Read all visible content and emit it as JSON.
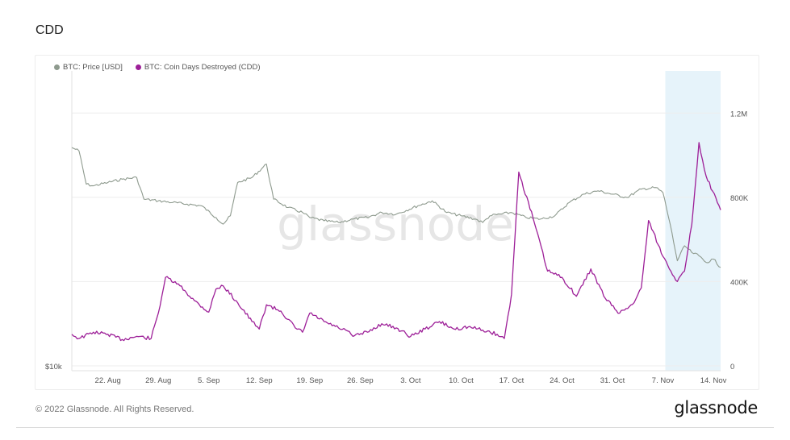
{
  "page": {
    "title": "CDD",
    "copyright": "© 2022 Glassnode. All Rights Reserved.",
    "brand": "glassnode",
    "watermark": "glassnode"
  },
  "colors": {
    "price": "#8e9a8e",
    "cdd": "#9d1f98",
    "highlight": "#e6f3fa",
    "grid": "#eeeeee"
  },
  "chart_data": {
    "type": "line",
    "title": "CDD",
    "x_ticks": [
      "22. Aug",
      "29. Aug",
      "5. Sep",
      "12. Sep",
      "19. Sep",
      "26. Sep",
      "3. Oct",
      "10. Oct",
      "17. Oct",
      "24. Oct",
      "31. Oct",
      "7. Nov",
      "14. Nov"
    ],
    "y_right_ticks": [
      "0",
      "400K",
      "800K",
      "1.2M"
    ],
    "y_right_range": [
      0,
      1400000
    ],
    "y_left_label": "$10k",
    "x_start": "2022-08-17",
    "x_end": "2022-11-15",
    "highlight_start": "2022-11-08",
    "grid": true,
    "legend_position": "top-left",
    "series": [
      {
        "name": "BTC: Price [USD]",
        "axis": "left",
        "points": [
          [
            "2022-08-17",
            23400
          ],
          [
            "2022-08-18",
            23200
          ],
          [
            "2022-08-19",
            21200
          ],
          [
            "2022-08-20",
            21100
          ],
          [
            "2022-08-22",
            21300
          ],
          [
            "2022-08-24",
            21500
          ],
          [
            "2022-08-26",
            21600
          ],
          [
            "2022-08-27",
            20300
          ],
          [
            "2022-08-29",
            20200
          ],
          [
            "2022-08-31",
            20100
          ],
          [
            "2022-09-02",
            20000
          ],
          [
            "2022-09-04",
            19900
          ],
          [
            "2022-09-06",
            19200
          ],
          [
            "2022-09-07",
            18800
          ],
          [
            "2022-09-08",
            19300
          ],
          [
            "2022-09-09",
            21300
          ],
          [
            "2022-09-11",
            21600
          ],
          [
            "2022-09-13",
            22400
          ],
          [
            "2022-09-14",
            20300
          ],
          [
            "2022-09-16",
            19800
          ],
          [
            "2022-09-18",
            19500
          ],
          [
            "2022-09-19",
            19200
          ],
          [
            "2022-09-21",
            19000
          ],
          [
            "2022-09-23",
            18900
          ],
          [
            "2022-09-25",
            19100
          ],
          [
            "2022-09-27",
            19200
          ],
          [
            "2022-09-29",
            19500
          ],
          [
            "2022-10-01",
            19400
          ],
          [
            "2022-10-04",
            19900
          ],
          [
            "2022-10-06",
            20200
          ],
          [
            "2022-10-08",
            19500
          ],
          [
            "2022-10-10",
            19300
          ],
          [
            "2022-10-12",
            19100
          ],
          [
            "2022-10-13",
            18900
          ],
          [
            "2022-10-14",
            19300
          ],
          [
            "2022-10-17",
            19500
          ],
          [
            "2022-10-19",
            19200
          ],
          [
            "2022-10-21",
            19100
          ],
          [
            "2022-10-23",
            19300
          ],
          [
            "2022-10-25",
            20100
          ],
          [
            "2022-10-27",
            20600
          ],
          [
            "2022-10-29",
            20800
          ],
          [
            "2022-10-31",
            20600
          ],
          [
            "2022-11-02",
            20400
          ],
          [
            "2022-11-04",
            20900
          ],
          [
            "2022-11-06",
            21000
          ],
          [
            "2022-11-07",
            20700
          ],
          [
            "2022-11-08",
            18800
          ],
          [
            "2022-11-09",
            16600
          ],
          [
            "2022-11-10",
            17500
          ],
          [
            "2022-11-11",
            17100
          ],
          [
            "2022-11-12",
            16900
          ],
          [
            "2022-11-13",
            16500
          ],
          [
            "2022-11-14",
            16700
          ],
          [
            "2022-11-15",
            16200
          ]
        ]
      },
      {
        "name": "BTC: Coin Days Destroyed (CDD)",
        "axis": "right",
        "points": [
          [
            "2022-08-17",
            150000
          ],
          [
            "2022-08-18",
            130000
          ],
          [
            "2022-08-20",
            160000
          ],
          [
            "2022-08-22",
            150000
          ],
          [
            "2022-08-24",
            125000
          ],
          [
            "2022-08-26",
            140000
          ],
          [
            "2022-08-28",
            130000
          ],
          [
            "2022-08-29",
            250000
          ],
          [
            "2022-08-30",
            420000
          ],
          [
            "2022-09-01",
            380000
          ],
          [
            "2022-09-03",
            310000
          ],
          [
            "2022-09-05",
            255000
          ],
          [
            "2022-09-06",
            365000
          ],
          [
            "2022-09-07",
            380000
          ],
          [
            "2022-09-09",
            300000
          ],
          [
            "2022-09-11",
            210000
          ],
          [
            "2022-09-12",
            175000
          ],
          [
            "2022-09-13",
            290000
          ],
          [
            "2022-09-15",
            260000
          ],
          [
            "2022-09-17",
            180000
          ],
          [
            "2022-09-18",
            160000
          ],
          [
            "2022-09-19",
            250000
          ],
          [
            "2022-09-21",
            210000
          ],
          [
            "2022-09-23",
            180000
          ],
          [
            "2022-09-24",
            170000
          ],
          [
            "2022-09-25",
            140000
          ],
          [
            "2022-09-27",
            160000
          ],
          [
            "2022-09-29",
            200000
          ],
          [
            "2022-10-01",
            180000
          ],
          [
            "2022-10-03",
            140000
          ],
          [
            "2022-10-05",
            175000
          ],
          [
            "2022-10-07",
            210000
          ],
          [
            "2022-10-09",
            175000
          ],
          [
            "2022-10-11",
            185000
          ],
          [
            "2022-10-13",
            170000
          ],
          [
            "2022-10-15",
            150000
          ],
          [
            "2022-10-16",
            130000
          ],
          [
            "2022-10-17",
            340000
          ],
          [
            "2022-10-18",
            920000
          ],
          [
            "2022-10-20",
            700000
          ],
          [
            "2022-10-22",
            450000
          ],
          [
            "2022-10-24",
            420000
          ],
          [
            "2022-10-26",
            330000
          ],
          [
            "2022-10-28",
            460000
          ],
          [
            "2022-10-30",
            320000
          ],
          [
            "2022-11-01",
            250000
          ],
          [
            "2022-11-03",
            300000
          ],
          [
            "2022-11-04",
            370000
          ],
          [
            "2022-11-05",
            690000
          ],
          [
            "2022-11-07",
            520000
          ],
          [
            "2022-11-09",
            400000
          ],
          [
            "2022-11-10",
            450000
          ],
          [
            "2022-11-11",
            670000
          ],
          [
            "2022-11-12",
            1060000
          ],
          [
            "2022-11-13",
            900000
          ],
          [
            "2022-11-15",
            740000
          ]
        ]
      }
    ]
  }
}
